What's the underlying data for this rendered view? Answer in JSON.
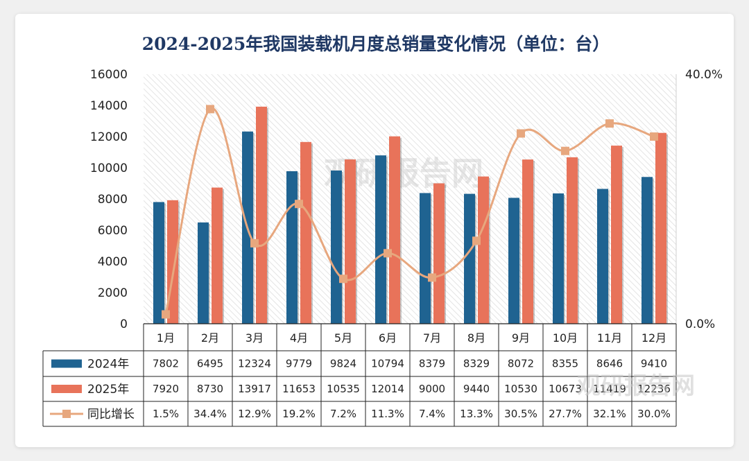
{
  "chart_data": {
    "type": "bar",
    "title": "2024-2025年我国装载机月度总销量变化情况（单位：台）",
    "categories": [
      "1月",
      "2月",
      "3月",
      "4月",
      "5月",
      "6月",
      "7月",
      "8月",
      "9月",
      "10月",
      "11月",
      "12月"
    ],
    "series": [
      {
        "name": "2024年",
        "type": "bar",
        "color": "#1f6391",
        "values": [
          7802,
          6495,
          12324,
          9779,
          9824,
          10794,
          8379,
          8329,
          8072,
          8355,
          8646,
          9410
        ],
        "labels": [
          "7802",
          "6495",
          "12324",
          "9779",
          "9824",
          "10794",
          "8379",
          "8329",
          "8072",
          "8355",
          "8646",
          "9410"
        ]
      },
      {
        "name": "2025年",
        "type": "bar",
        "color": "#e8735a",
        "values": [
          7920,
          8730,
          13917,
          11653,
          10535,
          12014,
          9000,
          9440,
          10530,
          10673,
          11419,
          12236
        ],
        "labels": [
          "7920",
          "8730",
          "13917",
          "11653",
          "10535",
          "12014",
          "9000",
          "9440",
          "10530",
          "10673",
          "11419",
          "12236"
        ]
      },
      {
        "name": "同比增长",
        "type": "line",
        "axis": "right",
        "color": "#e7a77e",
        "values": [
          1.5,
          34.4,
          12.9,
          19.2,
          7.2,
          11.3,
          7.4,
          13.3,
          30.5,
          27.7,
          32.1,
          30.0
        ],
        "labels": [
          "1.5%",
          "34.4%",
          "12.9%",
          "19.2%",
          "7.2%",
          "11.3%",
          "7.4%",
          "13.3%",
          "30.5%",
          "27.7%",
          "32.1%",
          "30.0%"
        ]
      }
    ],
    "ylim": [
      0,
      16000
    ],
    "yticks": [
      "0",
      "2000",
      "4000",
      "6000",
      "8000",
      "10000",
      "12000",
      "14000",
      "16000"
    ],
    "y2lim": [
      0,
      40
    ],
    "y2ticks": [
      "0.0%",
      "40.0%"
    ],
    "grid": false
  },
  "watermark": {
    "center": "观研报告网",
    "corner": "观研报告网"
  }
}
